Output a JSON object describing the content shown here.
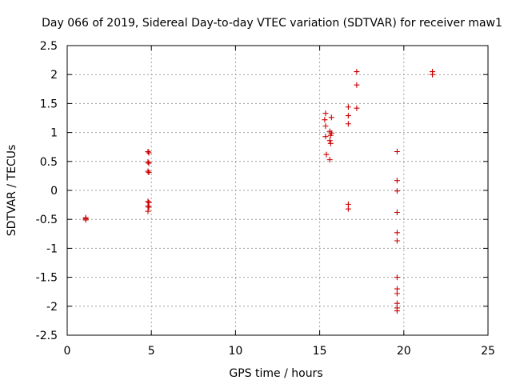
{
  "colors": {
    "marker": "#cc0000",
    "grid": "#a0a0a0",
    "axis": "#000000",
    "background": "#ffffff"
  },
  "chart_data": {
    "type": "scatter",
    "title": "Day 066 of 2019, Sidereal Day-to-day VTEC variation (SDTVAR) for receiver maw1",
    "xlabel": "GPS time / hours",
    "ylabel": "SDTVAR / TECUs",
    "xlim": [
      0,
      25
    ],
    "ylim": [
      -2.5,
      2.5
    ],
    "xticks": [
      0,
      5,
      10,
      15,
      20,
      25
    ],
    "yticks": [
      -2.5,
      -2,
      -1.5,
      -1,
      -0.5,
      0,
      0.5,
      1,
      1.5,
      2,
      2.5
    ],
    "xtick_labels": [
      "0",
      "5",
      "10",
      "15",
      "20",
      "25"
    ],
    "ytick_labels": [
      "-2.5",
      "-2",
      "-1.5",
      "-1",
      "-0.5",
      "0",
      "0.5",
      "1",
      "1.5",
      "2",
      "2.5"
    ],
    "grid": true,
    "marker": "+",
    "series": [
      {
        "name": "SDTVAR",
        "points": [
          [
            1.1,
            -0.47
          ],
          [
            1.1,
            -0.49
          ],
          [
            1.1,
            -0.51
          ],
          [
            4.8,
            0.67
          ],
          [
            4.85,
            0.65
          ],
          [
            4.8,
            0.49
          ],
          [
            4.85,
            0.47
          ],
          [
            4.8,
            0.33
          ],
          [
            4.85,
            0.31
          ],
          [
            4.8,
            -0.19
          ],
          [
            4.85,
            -0.21
          ],
          [
            4.8,
            -0.27
          ],
          [
            4.85,
            -0.29
          ],
          [
            4.8,
            -0.36
          ],
          [
            15.35,
            1.33
          ],
          [
            15.3,
            1.22
          ],
          [
            15.7,
            1.26
          ],
          [
            15.35,
            1.11
          ],
          [
            15.6,
            1.02
          ],
          [
            15.7,
            0.99
          ],
          [
            15.35,
            0.93
          ],
          [
            15.65,
            0.95
          ],
          [
            15.6,
            0.86
          ],
          [
            15.65,
            0.81
          ],
          [
            15.4,
            0.62
          ],
          [
            15.6,
            0.53
          ],
          [
            16.7,
            1.44
          ],
          [
            16.7,
            1.29
          ],
          [
            16.7,
            1.15
          ],
          [
            17.2,
            2.05
          ],
          [
            17.2,
            1.82
          ],
          [
            17.2,
            1.42
          ],
          [
            16.7,
            -0.24
          ],
          [
            16.7,
            -0.32
          ],
          [
            19.6,
            0.67
          ],
          [
            19.6,
            0.17
          ],
          [
            19.6,
            -0.01
          ],
          [
            19.6,
            -0.38
          ],
          [
            19.6,
            -0.73
          ],
          [
            19.6,
            -0.87
          ],
          [
            19.6,
            -1.5
          ],
          [
            19.6,
            -1.7
          ],
          [
            19.6,
            -1.78
          ],
          [
            19.6,
            -1.95
          ],
          [
            19.6,
            -2.03
          ],
          [
            19.6,
            -2.08
          ],
          [
            21.7,
            2.05
          ],
          [
            21.7,
            2.0
          ]
        ]
      }
    ]
  }
}
